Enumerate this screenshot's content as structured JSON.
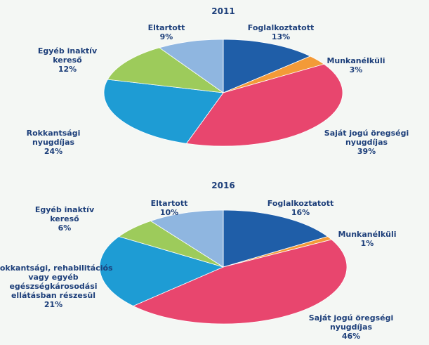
{
  "chart_data": [
    {
      "type": "pie",
      "title": "2011",
      "categories": [
        "Foglalkoztatott",
        "Munkanélküli",
        "Saját jogú öregségi nyugdíjas",
        "Rokkantsági nyugdíjas",
        "Egyéb inaktív kereső",
        "Eltartott"
      ],
      "values": [
        13,
        3,
        39,
        24,
        12,
        9
      ],
      "value_labels": [
        "13%",
        "3%",
        "39%",
        "24%",
        "12%",
        "9%"
      ],
      "colors": [
        "#1f5ea8",
        "#f39a38",
        "#e8466e",
        "#1e9cd4",
        "#9dcb5b",
        "#8fb6e0"
      ]
    },
    {
      "type": "pie",
      "title": "2016",
      "categories": [
        "Foglalkoztatott",
        "Munkanélküli",
        "Saját jogú öregségi nyugdíjas",
        "Rokkantsági, rehabilitációs vagy egyéb egészségkárosodási ellátásban részesül",
        "Egyéb inaktív kereső",
        "Eltartott"
      ],
      "values": [
        16,
        1,
        46,
        21,
        6,
        10
      ],
      "value_labels": [
        "16%",
        "1%",
        "46%",
        "21%",
        "6%",
        "10%"
      ],
      "colors": [
        "#1f5ea8",
        "#f39a38",
        "#e8466e",
        "#1e9cd4",
        "#9dcb5b",
        "#8fb6e0"
      ]
    }
  ]
}
